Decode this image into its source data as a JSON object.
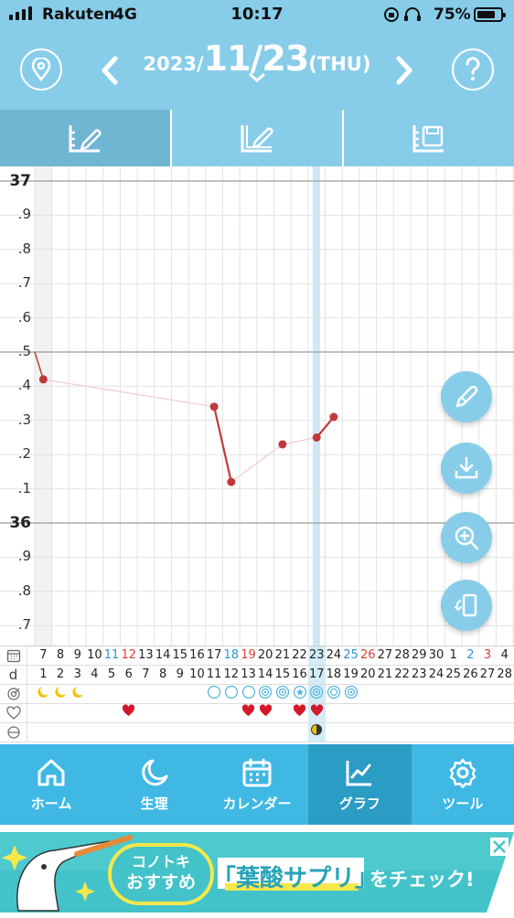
{
  "status_bar": {
    "carrier": "Rakuten",
    "network": "4G",
    "time": "10:17",
    "battery": "75%"
  },
  "header": {
    "year": "2023/",
    "month_day": "11/23",
    "weekday": "(THU)"
  },
  "graph": {
    "y_labels": [
      "37",
      ".9",
      ".8",
      ".7",
      ".6",
      ".5",
      ".4",
      ".3",
      ".2",
      ".1",
      "36",
      ".9",
      ".8",
      ".7"
    ]
  },
  "chart_data": {
    "type": "line",
    "x": [
      "11/7",
      "11/17",
      "11/18",
      "11/21",
      "11/23",
      "11/24"
    ],
    "values": [
      36.42,
      36.34,
      36.12,
      36.23,
      36.25,
      36.31
    ],
    "ylim": [
      35.65,
      37.05
    ],
    "reference_line": 36.5,
    "grid": true
  },
  "calendar": {
    "dates": [
      "7",
      "8",
      "9",
      "10",
      "11",
      "12",
      "13",
      "14",
      "15",
      "16",
      "17",
      "18",
      "19",
      "20",
      "21",
      "22",
      "23",
      "24",
      "25",
      "26",
      "27",
      "28",
      "29",
      "30",
      "1",
      "2",
      "3",
      "4"
    ],
    "cycle_days": [
      "1",
      "2",
      "3",
      "4",
      "5",
      "6",
      "7",
      "8",
      "9",
      "10",
      "11",
      "12",
      "13",
      "14",
      "15",
      "16",
      "17",
      "18",
      "19",
      "20",
      "21",
      "22",
      "23",
      "24",
      "25",
      "26",
      "27",
      "28"
    ],
    "cycle_label": "d"
  },
  "nav": {
    "items": [
      {
        "label": "ホーム",
        "icon": "home-icon"
      },
      {
        "label": "生理",
        "icon": "moon-icon"
      },
      {
        "label": "カレンダー",
        "icon": "calendar-icon"
      },
      {
        "label": "グラフ",
        "icon": "chart-icon"
      },
      {
        "label": "ツール",
        "icon": "gear-icon"
      }
    ]
  },
  "ad": {
    "brand_line1": "コノトキ",
    "brand_line2": "おすすめ",
    "product": "「葉酸サプリ」",
    "cta": "をチェック!"
  },
  "colors": {
    "header": "#87cdea",
    "nav": "#3fb8e4",
    "line": "#c0393b",
    "today": "#d3ecf8"
  }
}
